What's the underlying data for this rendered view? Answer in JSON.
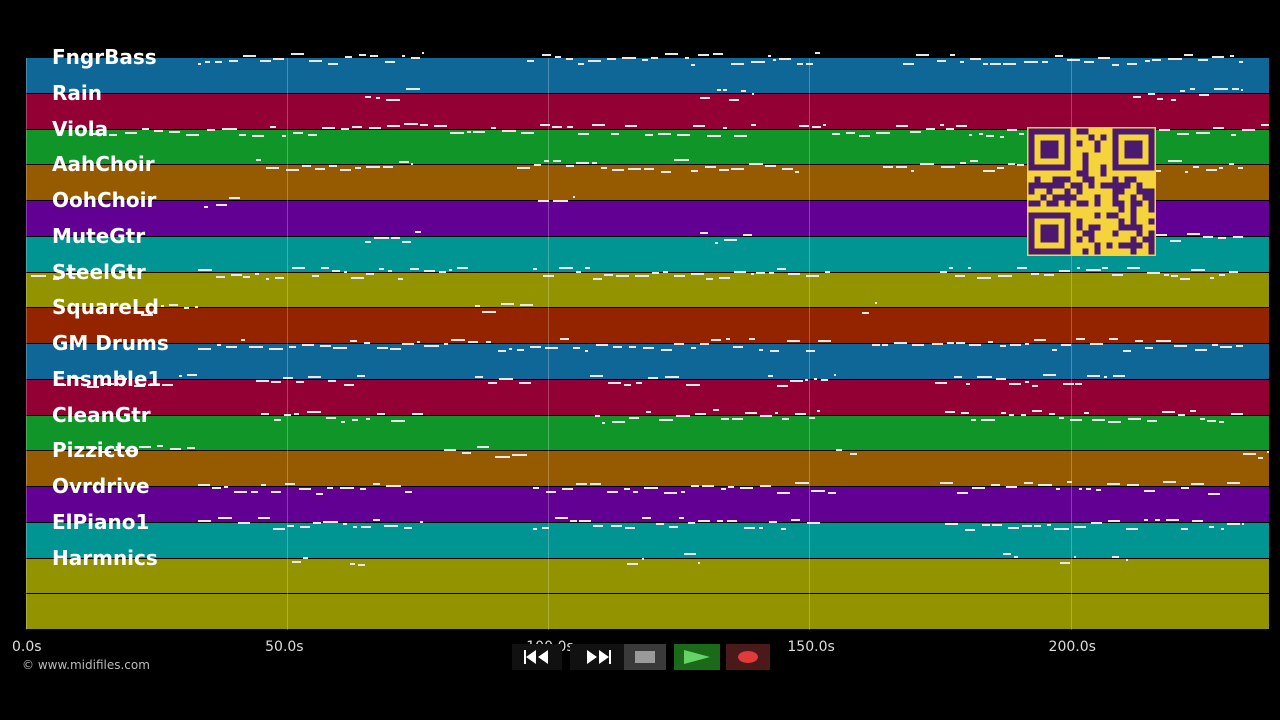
{
  "tracks": [
    {
      "name": "FngrBass",
      "color": "#0f6797"
    },
    {
      "name": "Rain",
      "color": "#930034"
    },
    {
      "name": "Viola",
      "color": "#0f9528"
    },
    {
      "name": "AahChoir",
      "color": "#965b00"
    },
    {
      "name": "OohChoir",
      "color": "#610093"
    },
    {
      "name": "MuteGtr",
      "color": "#009492"
    },
    {
      "name": "SteelGtr",
      "color": "#939300"
    },
    {
      "name": "SquareLd",
      "color": "#942400"
    },
    {
      "name": "GM Drums",
      "color": "#0f6797"
    },
    {
      "name": "Ensmble1",
      "color": "#930034"
    },
    {
      "name": "CleanGtr",
      "color": "#0f9528"
    },
    {
      "name": "Pizzicto",
      "color": "#965b00"
    },
    {
      "name": "Ovrdrive",
      "color": "#610093"
    },
    {
      "name": "ElPiano1",
      "color": "#009492"
    },
    {
      "name": "Harmnics",
      "color": "#939300"
    },
    {
      "name": "",
      "color": "#939300"
    }
  ],
  "timeline": {
    "max_seconds": 238,
    "ticks": [
      {
        "value": 0,
        "label": "0.0s"
      },
      {
        "value": 50,
        "label": "50.0s"
      },
      {
        "value": 100,
        "label": "100.0s"
      },
      {
        "value": 150,
        "label": "150.0s"
      },
      {
        "value": 200,
        "label": "200.0s"
      }
    ]
  },
  "note_regions": [
    [
      [
        33,
        76
      ],
      [
        96,
        152
      ],
      [
        168,
        233
      ]
    ],
    [
      [
        65,
        76
      ],
      [
        129,
        139
      ],
      [
        212,
        233
      ]
    ],
    [
      [
        12,
        140
      ],
      [
        148,
        192
      ],
      [
        210,
        238
      ]
    ],
    [
      [
        44,
        74
      ],
      [
        94,
        148
      ],
      [
        164,
        233
      ]
    ],
    [
      [
        34,
        41
      ],
      [
        98,
        105
      ]
    ],
    [
      [
        65,
        76
      ],
      [
        129,
        139
      ],
      [
        211,
        233
      ]
    ],
    [
      [
        1,
        10
      ],
      [
        33,
        86
      ],
      [
        97,
        154
      ],
      [
        175,
        233
      ]
    ],
    [
      [
        22,
        33
      ],
      [
        86,
        97
      ],
      [
        160,
        163
      ]
    ],
    [
      [
        33,
        155
      ],
      [
        162,
        233
      ]
    ],
    [
      [
        7,
        33
      ],
      [
        44,
        65
      ],
      [
        86,
        97
      ],
      [
        108,
        129
      ],
      [
        142,
        155
      ],
      [
        174,
        211
      ]
    ],
    [
      [
        45,
        76
      ],
      [
        109,
        152
      ],
      [
        176,
        233
      ]
    ],
    [
      [
        12,
        33
      ],
      [
        80,
        96
      ],
      [
        155,
        160
      ],
      [
        233,
        238
      ]
    ],
    [
      [
        33,
        74
      ],
      [
        97,
        155
      ],
      [
        175,
        233
      ]
    ],
    [
      [
        33,
        76
      ],
      [
        97,
        152
      ],
      [
        176,
        233
      ]
    ],
    [
      [
        51,
        54
      ],
      [
        62,
        65
      ],
      [
        115,
        118
      ],
      [
        126,
        129
      ],
      [
        187,
        190
      ],
      [
        198,
        201
      ],
      [
        208,
        211
      ]
    ]
  ],
  "copyright": "© www.midifiles.com",
  "qr_label": "QR code",
  "transport": {
    "rewind": "rewind",
    "forward": "fast-forward",
    "stop": "stop",
    "play": "play",
    "record": "record"
  }
}
